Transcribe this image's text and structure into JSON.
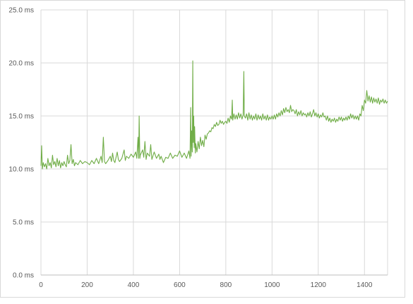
{
  "chart_data": {
    "type": "line",
    "title": "",
    "xlabel": "",
    "ylabel": "",
    "xlim": [
      0,
      1500
    ],
    "ylim": [
      0,
      25
    ],
    "x_ticks": [
      "0",
      "200",
      "400",
      "600",
      "800",
      "1000",
      "1200",
      "1400"
    ],
    "y_ticks": [
      "0.0 ms",
      "5.0 ms",
      "10.0 ms",
      "15.0 ms",
      "20.0 ms",
      "25.0 ms"
    ],
    "grid": true,
    "legend": "none",
    "series": [
      {
        "color": "#70ad47",
        "points": [
          [
            0,
            10.3
          ],
          [
            3,
            12.2
          ],
          [
            6,
            10.0
          ],
          [
            10,
            10.6
          ],
          [
            15,
            10.2
          ],
          [
            20,
            10.5
          ],
          [
            25,
            10.0
          ],
          [
            30,
            11.0
          ],
          [
            35,
            10.3
          ],
          [
            40,
            10.6
          ],
          [
            45,
            10.1
          ],
          [
            50,
            11.3
          ],
          [
            55,
            10.4
          ],
          [
            60,
            10.7
          ],
          [
            65,
            10.2
          ],
          [
            70,
            11.0
          ],
          [
            75,
            10.3
          ],
          [
            80,
            10.8
          ],
          [
            85,
            10.1
          ],
          [
            90,
            10.6
          ],
          [
            95,
            10.3
          ],
          [
            100,
            10.7
          ],
          [
            105,
            10.4
          ],
          [
            110,
            10.2
          ],
          [
            115,
            11.3
          ],
          [
            120,
            10.5
          ],
          [
            125,
            10.8
          ],
          [
            130,
            12.3
          ],
          [
            135,
            10.5
          ],
          [
            140,
            10.9
          ],
          [
            145,
            10.3
          ],
          [
            150,
            10.6
          ],
          [
            160,
            10.4
          ],
          [
            170,
            10.8
          ],
          [
            180,
            10.5
          ],
          [
            190,
            10.7
          ],
          [
            200,
            10.6
          ],
          [
            210,
            10.4
          ],
          [
            220,
            10.8
          ],
          [
            230,
            10.5
          ],
          [
            240,
            11.0
          ],
          [
            250,
            10.5
          ],
          [
            260,
            11.2
          ],
          [
            265,
            10.6
          ],
          [
            270,
            13.0
          ],
          [
            275,
            10.7
          ],
          [
            280,
            10.5
          ],
          [
            290,
            10.8
          ],
          [
            300,
            11.2
          ],
          [
            305,
            10.7
          ],
          [
            310,
            11.5
          ],
          [
            315,
            10.8
          ],
          [
            320,
            10.6
          ],
          [
            330,
            11.6
          ],
          [
            335,
            10.9
          ],
          [
            340,
            10.7
          ],
          [
            350,
            11.0
          ],
          [
            360,
            11.8
          ],
          [
            365,
            10.8
          ],
          [
            370,
            11.2
          ],
          [
            380,
            11.0
          ],
          [
            390,
            11.4
          ],
          [
            400,
            11.1
          ],
          [
            410,
            11.6
          ],
          [
            415,
            11.0
          ],
          [
            420,
            13.0
          ],
          [
            423,
            11.0
          ],
          [
            425,
            15.0
          ],
          [
            428,
            11.0
          ],
          [
            430,
            11.3
          ],
          [
            440,
            11.8
          ],
          [
            445,
            11.1
          ],
          [
            450,
            12.6
          ],
          [
            455,
            10.9
          ],
          [
            460,
            11.5
          ],
          [
            470,
            11.2
          ],
          [
            475,
            12.3
          ],
          [
            480,
            10.9
          ],
          [
            490,
            11.6
          ],
          [
            500,
            11.0
          ],
          [
            510,
            11.4
          ],
          [
            515,
            10.9
          ],
          [
            520,
            11.2
          ],
          [
            530,
            10.6
          ],
          [
            540,
            11.1
          ],
          [
            550,
            11.0
          ],
          [
            560,
            11.5
          ],
          [
            570,
            11.0
          ],
          [
            580,
            11.3
          ],
          [
            590,
            11.2
          ],
          [
            600,
            11.7
          ],
          [
            610,
            11.1
          ],
          [
            620,
            11.5
          ],
          [
            630,
            11.0
          ],
          [
            640,
            11.7
          ],
          [
            645,
            11.0
          ],
          [
            648,
            15.8
          ],
          [
            650,
            11.2
          ],
          [
            652,
            13.6
          ],
          [
            655,
            11.6
          ],
          [
            657,
            20.2
          ],
          [
            659,
            12.5
          ],
          [
            661,
            15.0
          ],
          [
            663,
            12.0
          ],
          [
            665,
            14.0
          ],
          [
            668,
            11.5
          ],
          [
            670,
            12.4
          ],
          [
            675,
            11.6
          ],
          [
            680,
            12.6
          ],
          [
            685,
            11.9
          ],
          [
            690,
            13.0
          ],
          [
            695,
            12.2
          ],
          [
            700,
            12.7
          ],
          [
            705,
            12.1
          ],
          [
            710,
            13.2
          ],
          [
            715,
            12.8
          ],
          [
            720,
            13.3
          ],
          [
            725,
            13.4
          ],
          [
            730,
            13.6
          ],
          [
            735,
            13.5
          ],
          [
            740,
            13.9
          ],
          [
            745,
            13.8
          ],
          [
            750,
            14.2
          ],
          [
            755,
            14.0
          ],
          [
            760,
            14.4
          ],
          [
            765,
            14.1
          ],
          [
            770,
            14.2
          ],
          [
            775,
            14.6
          ],
          [
            780,
            14.3
          ],
          [
            785,
            14.5
          ],
          [
            790,
            14.2
          ],
          [
            795,
            14.4
          ],
          [
            800,
            14.5
          ],
          [
            805,
            14.3
          ],
          [
            810,
            14.8
          ],
          [
            815,
            14.4
          ],
          [
            820,
            15.0
          ],
          [
            825,
            14.7
          ],
          [
            828,
            16.5
          ],
          [
            830,
            14.6
          ],
          [
            835,
            15.2
          ],
          [
            840,
            14.7
          ],
          [
            845,
            15.1
          ],
          [
            850,
            14.7
          ],
          [
            855,
            15.3
          ],
          [
            860,
            14.8
          ],
          [
            865,
            15.2
          ],
          [
            870,
            14.7
          ],
          [
            875,
            15.1
          ],
          [
            878,
            19.2
          ],
          [
            880,
            15.0
          ],
          [
            885,
            14.8
          ],
          [
            890,
            15.2
          ],
          [
            895,
            14.6
          ],
          [
            900,
            15.3
          ],
          [
            905,
            14.7
          ],
          [
            910,
            15.1
          ],
          [
            915,
            14.6
          ],
          [
            920,
            15.0
          ],
          [
            925,
            14.7
          ],
          [
            930,
            15.2
          ],
          [
            935,
            14.6
          ],
          [
            940,
            15.1
          ],
          [
            945,
            14.7
          ],
          [
            950,
            15.0
          ],
          [
            955,
            14.6
          ],
          [
            960,
            15.2
          ],
          [
            965,
            14.7
          ],
          [
            970,
            15.0
          ],
          [
            975,
            14.6
          ],
          [
            980,
            15.1
          ],
          [
            985,
            14.6
          ],
          [
            990,
            14.9
          ],
          [
            995,
            14.7
          ],
          [
            1000,
            15.0
          ],
          [
            1005,
            14.7
          ],
          [
            1010,
            15.1
          ],
          [
            1015,
            14.7
          ],
          [
            1020,
            15.2
          ],
          [
            1025,
            14.9
          ],
          [
            1030,
            15.3
          ],
          [
            1035,
            15.0
          ],
          [
            1040,
            15.5
          ],
          [
            1045,
            15.1
          ],
          [
            1050,
            15.7
          ],
          [
            1055,
            15.3
          ],
          [
            1060,
            15.8
          ],
          [
            1065,
            15.4
          ],
          [
            1070,
            15.6
          ],
          [
            1075,
            15.3
          ],
          [
            1080,
            16.0
          ],
          [
            1085,
            15.4
          ],
          [
            1090,
            15.6
          ],
          [
            1095,
            15.5
          ],
          [
            1100,
            15.2
          ],
          [
            1105,
            15.6
          ],
          [
            1110,
            15.0
          ],
          [
            1115,
            15.4
          ],
          [
            1120,
            15.1
          ],
          [
            1125,
            15.5
          ],
          [
            1130,
            15.0
          ],
          [
            1135,
            15.3
          ],
          [
            1140,
            15.1
          ],
          [
            1145,
            15.2
          ],
          [
            1150,
            14.9
          ],
          [
            1155,
            15.3
          ],
          [
            1160,
            15.0
          ],
          [
            1165,
            15.4
          ],
          [
            1170,
            14.9
          ],
          [
            1175,
            15.2
          ],
          [
            1180,
            15.6
          ],
          [
            1185,
            15.0
          ],
          [
            1190,
            15.3
          ],
          [
            1195,
            14.9
          ],
          [
            1200,
            15.2
          ],
          [
            1205,
            14.8
          ],
          [
            1210,
            15.1
          ],
          [
            1215,
            14.9
          ],
          [
            1220,
            15.3
          ],
          [
            1225,
            14.9
          ],
          [
            1230,
            15.0
          ],
          [
            1235,
            14.6
          ],
          [
            1240,
            15.0
          ],
          [
            1245,
            14.5
          ],
          [
            1250,
            14.8
          ],
          [
            1255,
            14.4
          ],
          [
            1260,
            14.7
          ],
          [
            1265,
            14.5
          ],
          [
            1270,
            14.8
          ],
          [
            1275,
            14.4
          ],
          [
            1280,
            14.7
          ],
          [
            1285,
            14.5
          ],
          [
            1290,
            14.9
          ],
          [
            1295,
            14.6
          ],
          [
            1300,
            14.9
          ],
          [
            1305,
            14.5
          ],
          [
            1310,
            14.8
          ],
          [
            1315,
            14.6
          ],
          [
            1320,
            14.9
          ],
          [
            1325,
            14.6
          ],
          [
            1330,
            15.0
          ],
          [
            1335,
            14.7
          ],
          [
            1340,
            15.2
          ],
          [
            1345,
            14.8
          ],
          [
            1350,
            15.1
          ],
          [
            1355,
            14.7
          ],
          [
            1360,
            15.0
          ],
          [
            1365,
            14.7
          ],
          [
            1370,
            15.0
          ],
          [
            1375,
            14.6
          ],
          [
            1380,
            15.2
          ],
          [
            1385,
            15.0
          ],
          [
            1390,
            16.0
          ],
          [
            1395,
            15.5
          ],
          [
            1400,
            16.5
          ],
          [
            1405,
            16.2
          ],
          [
            1410,
            17.4
          ],
          [
            1415,
            16.4
          ],
          [
            1420,
            16.9
          ],
          [
            1425,
            16.3
          ],
          [
            1430,
            16.8
          ],
          [
            1435,
            16.2
          ],
          [
            1440,
            16.7
          ],
          [
            1445,
            16.3
          ],
          [
            1450,
            16.6
          ],
          [
            1455,
            16.2
          ],
          [
            1460,
            16.7
          ],
          [
            1465,
            16.1
          ],
          [
            1470,
            16.5
          ],
          [
            1475,
            16.3
          ],
          [
            1480,
            16.6
          ],
          [
            1485,
            16.2
          ],
          [
            1490,
            16.5
          ],
          [
            1495,
            16.2
          ],
          [
            1500,
            16.4
          ]
        ]
      }
    ]
  }
}
